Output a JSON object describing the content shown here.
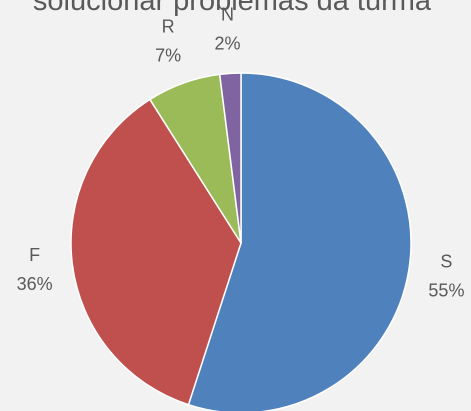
{
  "chart_data": {
    "type": "pie",
    "title": "solucionar problemas da turma",
    "categories": [
      "S",
      "F",
      "R",
      "N"
    ],
    "values": [
      55,
      36,
      7,
      2
    ],
    "value_labels": [
      "55%",
      "36%",
      "7%",
      "2%"
    ],
    "colors": [
      "#4f81bd",
      "#c0504d",
      "#9bbb59",
      "#8064a2"
    ]
  }
}
